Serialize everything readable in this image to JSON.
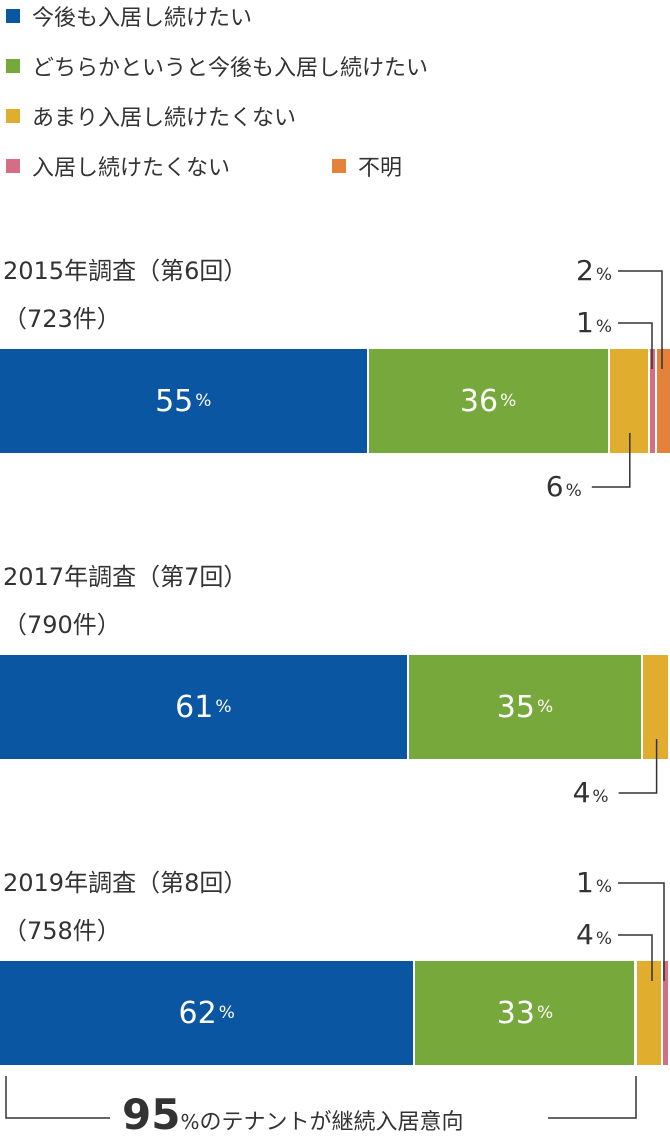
{
  "legend": [
    {
      "label": "今後も入居し続けたい",
      "color": "#0b56a3"
    },
    {
      "label": "どちらかというと今後も入居し続けたい",
      "color": "#76a83c"
    },
    {
      "label": "あまり入居し続けたくない",
      "color": "#e1ad2f"
    },
    {
      "label": "入居し続けたくない",
      "color": "#d56d85"
    },
    {
      "label": "不明",
      "color": "#e5823a"
    }
  ],
  "chart_data": {
    "type": "bar",
    "orientation": "horizontal-stacked",
    "unit": "%",
    "series_names": [
      "今後も入居し続けたい",
      "どちらかというと今後も入居し続けたい",
      "あまり入居し続けたくない",
      "入居し続けたくない",
      "不明"
    ],
    "surveys": [
      {
        "title": "2015年調査（第6回）",
        "count": "（723件）",
        "values": [
          55,
          36,
          6,
          1,
          2
        ]
      },
      {
        "title": "2017年調査（第7回）",
        "count": "（790件）",
        "values": [
          61,
          35,
          4,
          0,
          0
        ]
      },
      {
        "title": "2019年調査（第8回）",
        "count": "（758件）",
        "values": [
          62,
          33,
          4,
          1,
          0
        ]
      }
    ],
    "annotation": {
      "value": "95",
      "unit": "%",
      "text": "のテナントが継続入居意向"
    }
  }
}
